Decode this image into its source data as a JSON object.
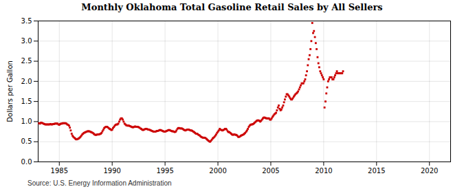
{
  "chart_data": {
    "type": "scatter",
    "title": "Monthly Oklahoma Total Gasoline Retail Sales by All Sellers",
    "ylabel": "Dollars per Gallon",
    "source": "Source: U.S. Energy Information Administration",
    "color": "#cc0000",
    "marker": "square",
    "grid": true,
    "xlim": [
      1983,
      2022
    ],
    "ylim": [
      0.0,
      3.5
    ],
    "xticks": [
      1985,
      1990,
      1995,
      2000,
      2005,
      2010,
      2015,
      2020
    ],
    "yticks": [
      {
        "value": 0.0,
        "label": "0.0"
      },
      0.5,
      {
        "value": 1.0,
        "label": "1.0"
      },
      1.5,
      {
        "value": 2.0,
        "label": "2.0"
      },
      2.5,
      {
        "value": 3.0,
        "label": "3.0"
      },
      3.5
    ],
    "x": [
      1983.08,
      1983.17,
      1983.25,
      1983.33,
      1983.42,
      1983.5,
      1983.58,
      1983.67,
      1983.75,
      1983.83,
      1983.92,
      1984.0,
      1984.08,
      1984.17,
      1984.25,
      1984.33,
      1984.42,
      1984.5,
      1984.58,
      1984.67,
      1984.75,
      1984.83,
      1984.92,
      1985.0,
      1985.08,
      1985.17,
      1985.25,
      1985.33,
      1985.42,
      1985.5,
      1985.58,
      1985.67,
      1985.75,
      1985.83,
      1985.92,
      1986.0,
      1986.08,
      1986.17,
      1986.25,
      1986.33,
      1986.42,
      1986.5,
      1986.58,
      1986.67,
      1986.75,
      1986.83,
      1986.92,
      1987.0,
      1987.08,
      1987.17,
      1987.25,
      1987.33,
      1987.42,
      1987.5,
      1987.58,
      1987.67,
      1987.75,
      1987.83,
      1987.92,
      1988.0,
      1988.08,
      1988.17,
      1988.25,
      1988.33,
      1988.42,
      1988.5,
      1988.58,
      1988.67,
      1988.75,
      1988.83,
      1988.92,
      1989.0,
      1989.08,
      1989.17,
      1989.25,
      1989.33,
      1989.42,
      1989.5,
      1989.58,
      1989.67,
      1989.75,
      1989.83,
      1989.92,
      1990.0,
      1990.08,
      1990.17,
      1990.25,
      1990.33,
      1990.42,
      1990.5,
      1990.58,
      1990.67,
      1990.75,
      1990.83,
      1990.92,
      1991.0,
      1991.08,
      1991.17,
      1991.25,
      1991.33,
      1991.42,
      1991.5,
      1991.58,
      1991.67,
      1991.75,
      1991.83,
      1991.92,
      1992.0,
      1992.08,
      1992.17,
      1992.25,
      1992.33,
      1992.42,
      1992.5,
      1992.58,
      1992.67,
      1992.75,
      1992.83,
      1992.92,
      1993.0,
      1993.08,
      1993.17,
      1993.25,
      1993.33,
      1993.42,
      1993.5,
      1993.58,
      1993.67,
      1993.75,
      1993.83,
      1993.92,
      1994.0,
      1994.08,
      1994.17,
      1994.25,
      1994.33,
      1994.42,
      1994.5,
      1994.58,
      1994.67,
      1994.75,
      1994.83,
      1994.92,
      1995.0,
      1995.08,
      1995.17,
      1995.25,
      1995.33,
      1995.42,
      1995.5,
      1995.58,
      1995.67,
      1995.75,
      1995.83,
      1995.92,
      1996.0,
      1996.08,
      1996.17,
      1996.25,
      1996.33,
      1996.42,
      1996.5,
      1996.58,
      1996.67,
      1996.75,
      1996.83,
      1996.92,
      1997.0,
      1997.08,
      1997.17,
      1997.25,
      1997.33,
      1997.42,
      1997.5,
      1997.58,
      1997.67,
      1997.75,
      1997.83,
      1997.92,
      1998.0,
      1998.08,
      1998.17,
      1998.25,
      1998.33,
      1998.42,
      1998.5,
      1998.58,
      1998.67,
      1998.75,
      1998.83,
      1998.92,
      1999.0,
      1999.08,
      1999.17,
      1999.25,
      1999.33,
      1999.42,
      1999.5,
      1999.58,
      1999.67,
      1999.75,
      1999.83,
      1999.92,
      2000.0,
      2000.08,
      2000.17,
      2000.25,
      2000.33,
      2000.42,
      2000.5,
      2000.58,
      2000.67,
      2000.75,
      2000.83,
      2000.92,
      2001.0,
      2001.08,
      2001.17,
      2001.25,
      2001.33,
      2001.42,
      2001.5,
      2001.58,
      2001.67,
      2001.75,
      2001.83,
      2001.92,
      2002.0,
      2002.08,
      2002.17,
      2002.25,
      2002.33,
      2002.42,
      2002.5,
      2002.58,
      2002.67,
      2002.75,
      2002.83,
      2002.92,
      2003.0,
      2003.08,
      2003.17,
      2003.25,
      2003.33,
      2003.42,
      2003.5,
      2003.58,
      2003.67,
      2003.75,
      2003.83,
      2003.92,
      2004.0,
      2004.08,
      2004.17,
      2004.25,
      2004.33,
      2004.42,
      2004.5,
      2004.58,
      2004.67,
      2004.75,
      2004.83,
      2004.92,
      2005.0,
      2005.08,
      2005.17,
      2005.25,
      2005.33,
      2005.42,
      2005.5,
      2005.58,
      2005.67,
      2005.75,
      2005.83,
      2005.92,
      2006.0,
      2006.08,
      2006.17,
      2006.25,
      2006.33,
      2006.42,
      2006.5,
      2006.58,
      2006.67,
      2006.75,
      2006.83,
      2006.92,
      2007.0,
      2007.08,
      2007.17,
      2007.25,
      2007.33,
      2007.42,
      2007.5,
      2007.58,
      2007.67,
      2007.75,
      2007.83,
      2007.92,
      2008.0,
      2008.08,
      2008.17,
      2008.25,
      2008.33,
      2008.42,
      2008.5,
      2008.58,
      2008.67,
      2008.75,
      2008.83,
      2008.92,
      2009.0,
      2009.08,
      2009.17,
      2009.25,
      2009.33,
      2009.42,
      2009.5,
      2009.58,
      2009.67,
      2009.75,
      2009.83,
      2009.92,
      2010.0,
      2010.08,
      2010.17,
      2010.25,
      2010.33,
      2010.42,
      2010.5,
      2010.58,
      2010.67,
      2010.75,
      2010.83,
      2010.92,
      2011.0,
      2011.08,
      2011.17,
      2011.25,
      2011.33,
      2011.42,
      2011.5,
      2011.58,
      2011.67,
      2011.75,
      2011.83
    ],
    "values": [
      0.96,
      0.95,
      0.97,
      0.97,
      0.96,
      0.95,
      0.94,
      0.93,
      0.93,
      0.93,
      0.93,
      0.93,
      0.93,
      0.94,
      0.93,
      0.93,
      0.94,
      0.94,
      0.95,
      0.95,
      0.95,
      0.95,
      0.93,
      0.92,
      0.94,
      0.95,
      0.95,
      0.96,
      0.96,
      0.96,
      0.96,
      0.95,
      0.93,
      0.92,
      0.9,
      0.85,
      0.78,
      0.7,
      0.65,
      0.62,
      0.6,
      0.58,
      0.56,
      0.56,
      0.57,
      0.58,
      0.6,
      0.62,
      0.65,
      0.68,
      0.7,
      0.72,
      0.73,
      0.74,
      0.75,
      0.76,
      0.76,
      0.76,
      0.75,
      0.74,
      0.73,
      0.72,
      0.7,
      0.68,
      0.67,
      0.67,
      0.68,
      0.68,
      0.68,
      0.69,
      0.7,
      0.72,
      0.76,
      0.8,
      0.84,
      0.86,
      0.87,
      0.87,
      0.86,
      0.84,
      0.82,
      0.81,
      0.79,
      0.8,
      0.84,
      0.87,
      0.9,
      0.92,
      0.93,
      0.93,
      0.95,
      1.0,
      1.05,
      1.08,
      1.08,
      1.05,
      1.0,
      0.95,
      0.93,
      0.91,
      0.9,
      0.9,
      0.9,
      0.89,
      0.88,
      0.87,
      0.86,
      0.86,
      0.87,
      0.88,
      0.87,
      0.87,
      0.87,
      0.86,
      0.85,
      0.83,
      0.82,
      0.8,
      0.79,
      0.8,
      0.81,
      0.82,
      0.82,
      0.81,
      0.8,
      0.8,
      0.79,
      0.78,
      0.77,
      0.76,
      0.75,
      0.75,
      0.75,
      0.76,
      0.77,
      0.77,
      0.78,
      0.79,
      0.79,
      0.78,
      0.77,
      0.76,
      0.75,
      0.75,
      0.76,
      0.77,
      0.78,
      0.79,
      0.79,
      0.78,
      0.77,
      0.76,
      0.76,
      0.75,
      0.74,
      0.75,
      0.78,
      0.82,
      0.84,
      0.84,
      0.83,
      0.83,
      0.83,
      0.82,
      0.8,
      0.79,
      0.78,
      0.79,
      0.8,
      0.8,
      0.8,
      0.79,
      0.78,
      0.78,
      0.77,
      0.75,
      0.74,
      0.72,
      0.7,
      0.7,
      0.69,
      0.67,
      0.66,
      0.64,
      0.62,
      0.61,
      0.6,
      0.6,
      0.6,
      0.59,
      0.57,
      0.55,
      0.53,
      0.51,
      0.5,
      0.52,
      0.55,
      0.58,
      0.6,
      0.62,
      0.65,
      0.68,
      0.72,
      0.75,
      0.78,
      0.82,
      0.8,
      0.79,
      0.78,
      0.79,
      0.8,
      0.82,
      0.82,
      0.8,
      0.76,
      0.74,
      0.74,
      0.72,
      0.7,
      0.68,
      0.67,
      0.68,
      0.68,
      0.67,
      0.67,
      0.65,
      0.62,
      0.62,
      0.63,
      0.65,
      0.66,
      0.67,
      0.68,
      0.7,
      0.72,
      0.75,
      0.78,
      0.82,
      0.87,
      0.9,
      0.92,
      0.93,
      0.93,
      0.94,
      0.96,
      0.98,
      1.0,
      1.02,
      1.03,
      1.03,
      1.02,
      1.0,
      1.02,
      1.05,
      1.08,
      1.1,
      1.1,
      1.09,
      1.08,
      1.08,
      1.08,
      1.08,
      1.05,
      1.05,
      1.08,
      1.12,
      1.15,
      1.18,
      1.2,
      1.22,
      1.28,
      1.35,
      1.4,
      1.32,
      1.28,
      1.3,
      1.35,
      1.4,
      1.48,
      1.55,
      1.62,
      1.68,
      1.68,
      1.65,
      1.62,
      1.58,
      1.55,
      1.55,
      1.58,
      1.62,
      1.65,
      1.68,
      1.7,
      1.72,
      1.75,
      1.8,
      1.85,
      1.9,
      1.95,
      1.95,
      1.95,
      2.0,
      2.05,
      2.15,
      2.25,
      2.4,
      2.55,
      2.65,
      2.8,
      3.0,
      3.45,
      3.2,
      3.25,
      3.1,
      2.95,
      2.8,
      2.6,
      2.45,
      2.35,
      2.25,
      2.2,
      2.15,
      2.1,
      2.05,
      1.35,
      1.5,
      1.7,
      1.85,
      2.0,
      2.05,
      2.1,
      2.1,
      2.1,
      2.05,
      2.05,
      2.1,
      2.15,
      2.2,
      2.25,
      2.2,
      2.2,
      2.2,
      2.2,
      2.2,
      2.2,
      2.25
    ]
  }
}
